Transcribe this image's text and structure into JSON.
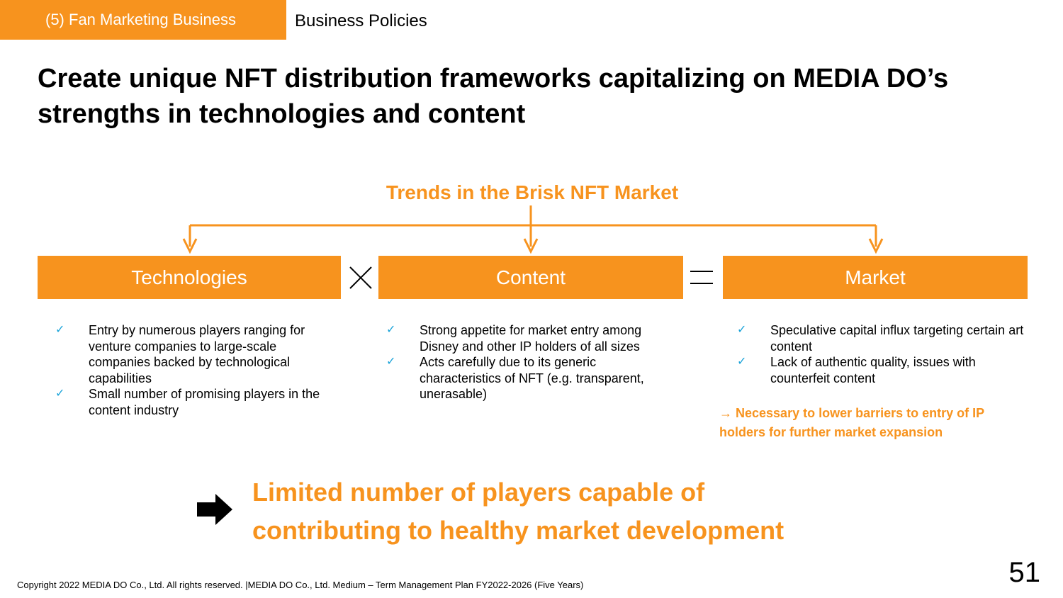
{
  "header": {
    "section_tag": "(5) Fan Marketing Business",
    "section_title": "Business Policies"
  },
  "headline": {
    "line1": "Create unique NFT distribution frameworks capitalizing on MEDIA DO’s",
    "line2": "strengths in technologies and content"
  },
  "trend_title": "Trends in the Brisk NFT Market",
  "boxes": {
    "technologies": "Technologies",
    "content": "Content",
    "market": "Market"
  },
  "operators": {
    "times": "×",
    "equals": "="
  },
  "columns": {
    "technologies": [
      "Entry by numerous players ranging for venture companies to large-scale companies backed by technological capabilities",
      "Small number of promising players in the content industry"
    ],
    "content": [
      "Strong appetite for market entry among Disney and other IP holders of all sizes",
      "Acts carefully due to its generic characteristics of NFT (e.g. transparent, unerasable)"
    ],
    "market": [
      "Speculative capital influx targeting certain art content",
      "Lack of authentic quality, issues with counterfeit content"
    ]
  },
  "market_note": "→ Necessary to lower barriers to entry of IP holders for further market expansion",
  "conclusion": {
    "line1": "Limited number of players capable of",
    "line2": "contributing to healthy market development"
  },
  "footer": {
    "copyright": "Copyright 2022 MEDIA DO Co., Ltd. All rights reserved.  |MEDIA DO Co., Ltd. Medium – Term Management Plan FY2022-2026 (Five Years)",
    "page_number": "51"
  },
  "colors": {
    "accent": "#f7931e",
    "check": "#1aa3d9"
  }
}
